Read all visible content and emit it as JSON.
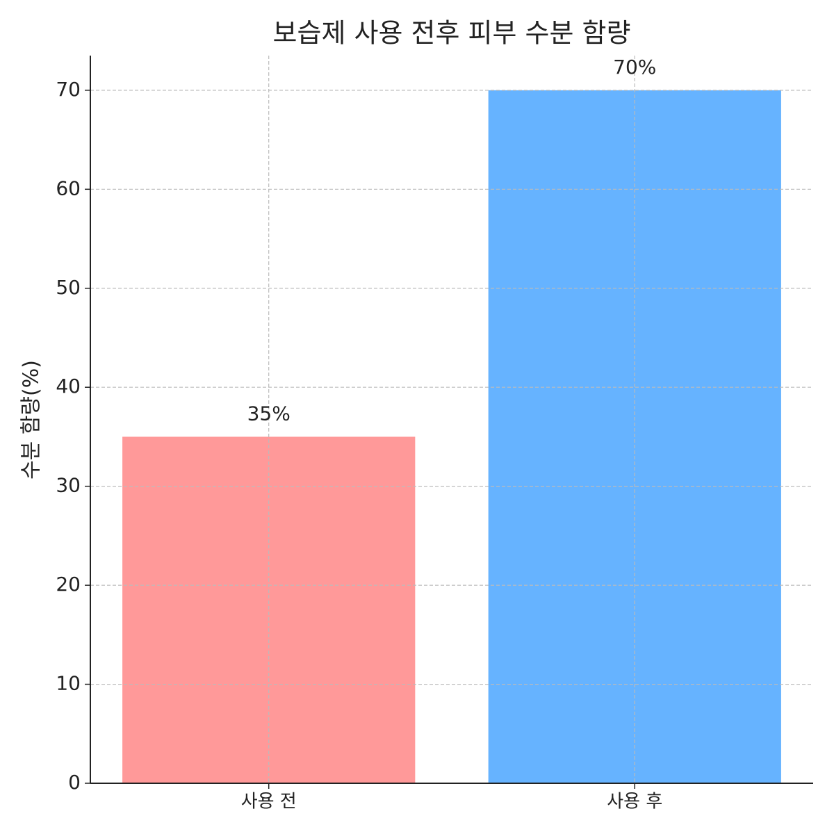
{
  "chart_data": {
    "type": "bar",
    "title": "보습제 사용 전후 피부 수분 함량",
    "y_label": "수분 함량(%)",
    "categories": [
      "사용 전",
      "사용 후"
    ],
    "values": [
      35,
      70
    ],
    "value_labels": [
      "35%",
      "70%"
    ],
    "colors": [
      "#ff9999",
      "#66b3ff"
    ],
    "ylim": [
      0,
      73.5
    ],
    "yticks": [
      0,
      10,
      20,
      30,
      40,
      50,
      60,
      70
    ],
    "grid": true
  }
}
